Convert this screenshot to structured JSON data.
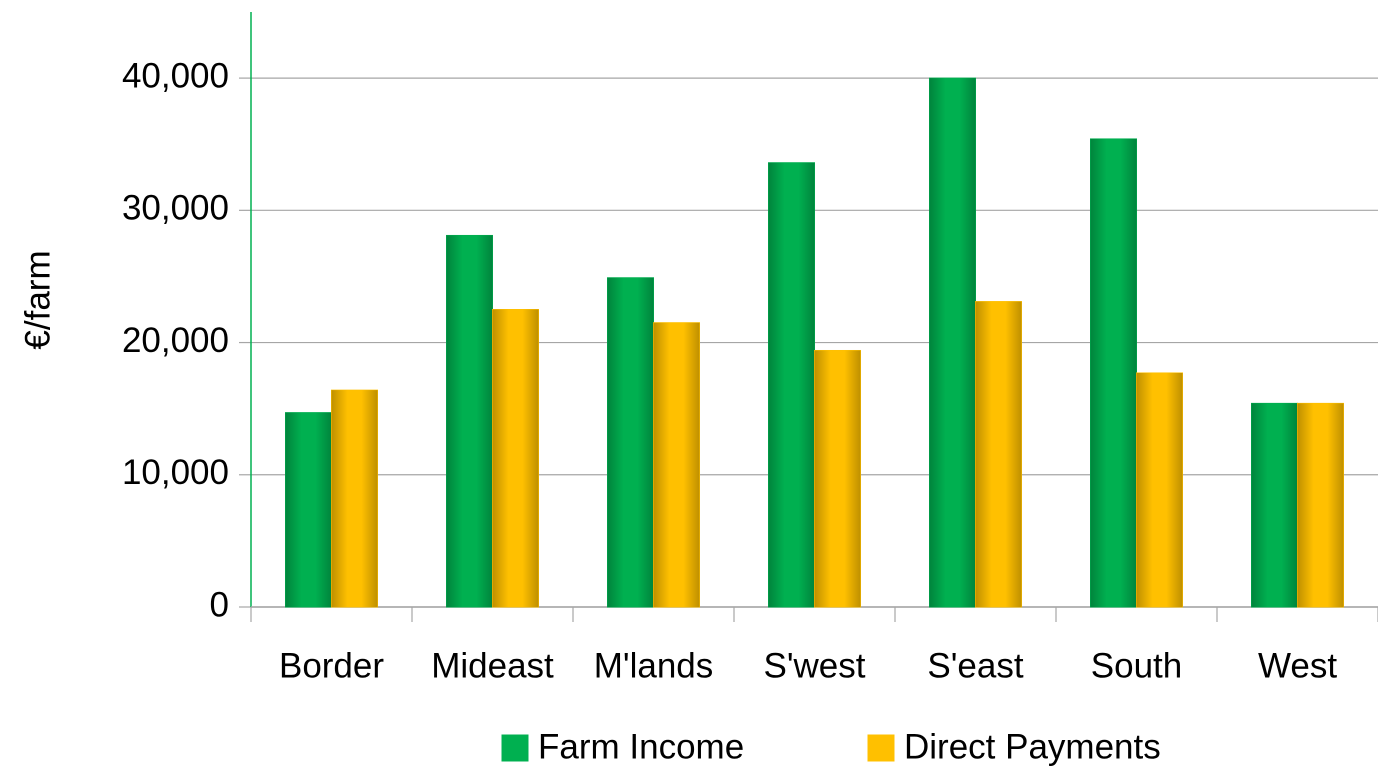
{
  "chart_data": {
    "type": "bar",
    "y_label": "€/farm",
    "categories": [
      "Border",
      "Mideast",
      "M'lands",
      "S'west",
      "S'east",
      "South",
      "West"
    ],
    "series": [
      {
        "name": "Farm Income",
        "color": "#00b050",
        "values": [
          14700,
          28100,
          24900,
          33600,
          40000,
          35400,
          15400
        ]
      },
      {
        "name": "Direct Payments",
        "color": "#ffc000",
        "values": [
          16400,
          22500,
          21500,
          19400,
          23100,
          17700,
          15400
        ]
      }
    ],
    "ylim": [
      0,
      45000
    ],
    "yticks": [
      0,
      {
        "value": 10000,
        "label": "10,000"
      },
      {
        "value": 20000,
        "label": "20,000"
      },
      {
        "value": 30000,
        "label": "30,000"
      },
      {
        "value": 40000,
        "label": "40,000"
      }
    ],
    "grid": true
  }
}
